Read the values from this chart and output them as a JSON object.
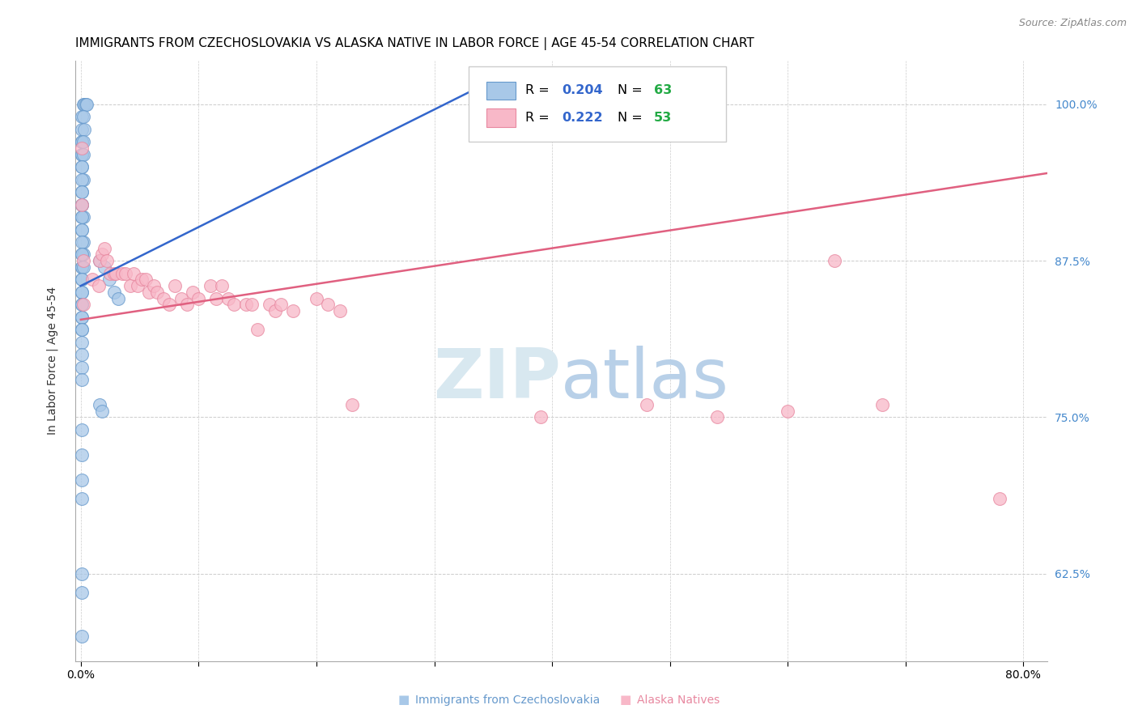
{
  "title": "IMMIGRANTS FROM CZECHOSLOVAKIA VS ALASKA NATIVE IN LABOR FORCE | AGE 45-54 CORRELATION CHART",
  "source_text": "Source: ZipAtlas.com",
  "ylabel": "In Labor Force | Age 45-54",
  "x_ticks": [
    0.0,
    0.1,
    0.2,
    0.3,
    0.4,
    0.5,
    0.6,
    0.7,
    0.8
  ],
  "x_tick_labels": [
    "0.0%",
    "",
    "",
    "",
    "",
    "",
    "",
    "",
    "80.0%"
  ],
  "y_ticks": [
    0.625,
    0.75,
    0.875,
    1.0
  ],
  "y_tick_labels": [
    "62.5%",
    "75.0%",
    "87.5%",
    "100.0%"
  ],
  "xlim": [
    -0.005,
    0.82
  ],
  "ylim": [
    0.555,
    1.035
  ],
  "blue_scatter_x": [
    0.002,
    0.003,
    0.004,
    0.005,
    0.001,
    0.002,
    0.001,
    0.003,
    0.001,
    0.001,
    0.002,
    0.001,
    0.001,
    0.002,
    0.001,
    0.001,
    0.002,
    0.001,
    0.001,
    0.001,
    0.001,
    0.001,
    0.001,
    0.002,
    0.001,
    0.001,
    0.001,
    0.002,
    0.001,
    0.001,
    0.002,
    0.001,
    0.001,
    0.001,
    0.002,
    0.001,
    0.001,
    0.001,
    0.001,
    0.001,
    0.001,
    0.001,
    0.001,
    0.001,
    0.001,
    0.001,
    0.001,
    0.001,
    0.001,
    0.016,
    0.02,
    0.024,
    0.028,
    0.032,
    0.016,
    0.018,
    0.001,
    0.001,
    0.001,
    0.001,
    0.001,
    0.001,
    0.001
  ],
  "blue_scatter_y": [
    1.0,
    1.0,
    1.0,
    1.0,
    0.99,
    0.99,
    0.98,
    0.98,
    0.97,
    0.97,
    0.97,
    0.96,
    0.96,
    0.96,
    0.95,
    0.95,
    0.94,
    0.94,
    0.93,
    0.93,
    0.92,
    0.92,
    0.91,
    0.91,
    0.91,
    0.9,
    0.9,
    0.89,
    0.89,
    0.88,
    0.88,
    0.88,
    0.87,
    0.87,
    0.87,
    0.86,
    0.86,
    0.85,
    0.85,
    0.84,
    0.84,
    0.83,
    0.83,
    0.82,
    0.82,
    0.81,
    0.8,
    0.79,
    0.78,
    0.875,
    0.87,
    0.86,
    0.85,
    0.845,
    0.76,
    0.755,
    0.74,
    0.72,
    0.7,
    0.685,
    0.625,
    0.61,
    0.575
  ],
  "pink_scatter_x": [
    0.001,
    0.002,
    0.001,
    0.002,
    0.01,
    0.015,
    0.016,
    0.018,
    0.02,
    0.022,
    0.025,
    0.028,
    0.03,
    0.035,
    0.038,
    0.042,
    0.045,
    0.048,
    0.052,
    0.055,
    0.058,
    0.062,
    0.065,
    0.07,
    0.075,
    0.08,
    0.085,
    0.09,
    0.095,
    0.1,
    0.11,
    0.115,
    0.12,
    0.125,
    0.13,
    0.14,
    0.145,
    0.15,
    0.16,
    0.165,
    0.17,
    0.18,
    0.2,
    0.21,
    0.22,
    0.23,
    0.39,
    0.48,
    0.54,
    0.6,
    0.64,
    0.68,
    0.78
  ],
  "pink_scatter_y": [
    0.92,
    0.84,
    0.965,
    0.875,
    0.86,
    0.855,
    0.875,
    0.88,
    0.885,
    0.875,
    0.865,
    0.865,
    0.865,
    0.865,
    0.865,
    0.855,
    0.865,
    0.855,
    0.86,
    0.86,
    0.85,
    0.855,
    0.85,
    0.845,
    0.84,
    0.855,
    0.845,
    0.84,
    0.85,
    0.845,
    0.855,
    0.845,
    0.855,
    0.845,
    0.84,
    0.84,
    0.84,
    0.82,
    0.84,
    0.835,
    0.84,
    0.835,
    0.845,
    0.84,
    0.835,
    0.76,
    0.75,
    0.76,
    0.75,
    0.755,
    0.875,
    0.76,
    0.685
  ],
  "blue_line_x": [
    0.0,
    0.33
  ],
  "blue_line_y": [
    0.855,
    1.01
  ],
  "pink_line_x": [
    0.0,
    0.82
  ],
  "pink_line_y": [
    0.828,
    0.945
  ],
  "blue_color": "#a8c8e8",
  "blue_edge_color": "#6699cc",
  "pink_color": "#f8b8c8",
  "pink_edge_color": "#e888a0",
  "blue_line_color": "#3366cc",
  "pink_line_color": "#e06080",
  "background_color": "#ffffff",
  "grid_color": "#cccccc",
  "title_fontsize": 11,
  "right_tick_color": "#4488cc",
  "watermark_zip_color": "#d8e8f0",
  "watermark_atlas_color": "#b8d0e8",
  "bottom_label_blue": "Immigrants from Czechoslovakia",
  "bottom_label_pink": "Alaska Natives",
  "legend_r_color": "#3366cc",
  "legend_n_color": "#22aa44"
}
